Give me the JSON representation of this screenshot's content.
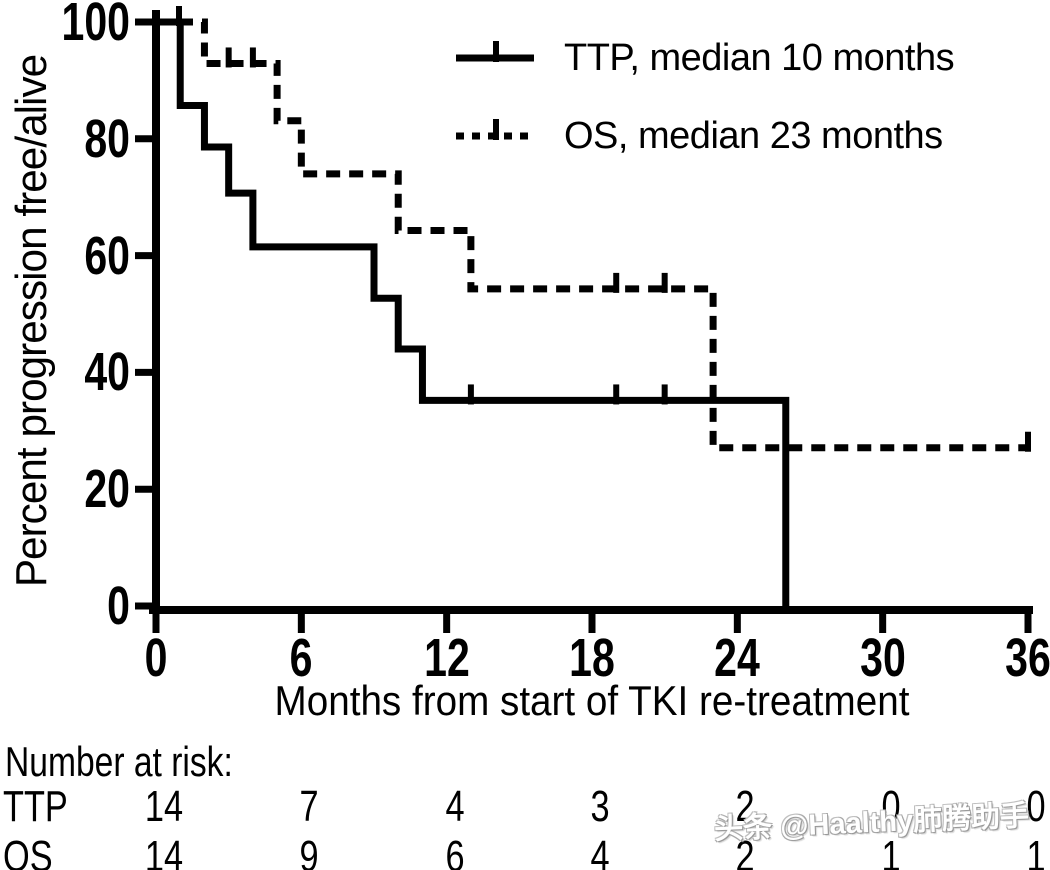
{
  "watermark": "头条 @Haalthy肺腾助手",
  "chart_data": {
    "type": "line",
    "subtype": "kaplan-meier-step",
    "title": "",
    "xlabel": "Months from start of TKI re-treatment",
    "ylabel": "Percent progression free/alive",
    "xlim": [
      0,
      36
    ],
    "ylim": [
      0,
      100
    ],
    "xticks": [
      0,
      6,
      12,
      18,
      24,
      30,
      36
    ],
    "yticks": [
      100,
      80,
      60,
      40,
      20,
      0
    ],
    "grid": false,
    "legend_position": "top-right-inside",
    "line_color": "#000000",
    "series": [
      {
        "name": "TTP, median 10 months",
        "line": "solid",
        "color": "#000000",
        "start": [
          0,
          100
        ],
        "drops": [
          [
            1,
            85.7
          ],
          [
            2,
            78.6
          ],
          [
            3,
            70.7
          ],
          [
            4,
            61.5
          ],
          [
            9,
            52.7
          ],
          [
            10,
            44
          ],
          [
            11,
            35.2
          ],
          [
            26,
            0
          ]
        ],
        "end_time": 26,
        "censor_marks": [
          [
            0.95,
            100
          ],
          [
            13,
            35.2
          ],
          [
            19,
            35.2
          ],
          [
            21,
            35.2
          ]
        ]
      },
      {
        "name": "OS, median 23 months",
        "line": "dashed",
        "color": "#000000",
        "start": [
          0,
          100
        ],
        "drops": [
          [
            2,
            92.9
          ],
          [
            5,
            83.1
          ],
          [
            6,
            74
          ],
          [
            10,
            64.3
          ],
          [
            13,
            54.3
          ],
          [
            23,
            27.1
          ]
        ],
        "end_time": 36,
        "censor_marks": [
          [
            3,
            92.9
          ],
          [
            4,
            92.9
          ],
          [
            19,
            54.3
          ],
          [
            21,
            54.3
          ],
          [
            36,
            27.1
          ]
        ]
      }
    ]
  },
  "risk_table": {
    "label": "Number at risk:",
    "times": [
      0,
      6,
      12,
      18,
      24,
      30,
      36
    ],
    "rows": [
      {
        "name": "TTP",
        "counts": [
          "14",
          "7",
          "4",
          "3",
          "2",
          "0",
          "0"
        ]
      },
      {
        "name": "OS",
        "counts": [
          "14",
          "9",
          "6",
          "4",
          "2",
          "1",
          "1"
        ]
      }
    ]
  }
}
